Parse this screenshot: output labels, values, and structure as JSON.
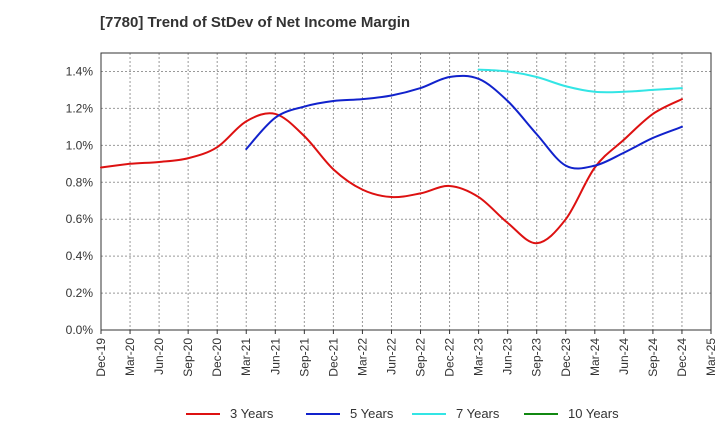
{
  "chart_data": {
    "type": "line",
    "title": "[7780]  Trend of StDev of Net Income Margin",
    "xlabel": "",
    "ylabel": "",
    "x": [
      "Dec-19",
      "Mar-20",
      "Jun-20",
      "Sep-20",
      "Dec-20",
      "Mar-21",
      "Jun-21",
      "Sep-21",
      "Dec-21",
      "Mar-22",
      "Jun-22",
      "Sep-22",
      "Dec-22",
      "Mar-23",
      "Jun-23",
      "Sep-23",
      "Dec-23",
      "Mar-24",
      "Jun-24",
      "Sep-24",
      "Dec-24",
      "Mar-25"
    ],
    "ylim": [
      0,
      1.5
    ],
    "yticks": [
      "0.0%",
      "0.2%",
      "0.4%",
      "0.6%",
      "0.8%",
      "1.0%",
      "1.2%",
      "1.4%"
    ],
    "ytick_values": [
      0,
      0.2,
      0.4,
      0.6,
      0.8,
      1.0,
      1.2,
      1.4
    ],
    "grid": true,
    "legend_position": "bottom",
    "series": [
      {
        "name": "3 Years",
        "color": "#dd1111",
        "values": [
          0.88,
          0.9,
          0.91,
          0.93,
          0.99,
          1.13,
          1.17,
          1.05,
          0.87,
          0.76,
          0.72,
          0.74,
          0.78,
          0.72,
          0.58,
          0.47,
          0.6,
          0.88,
          1.03,
          1.17,
          1.25,
          null
        ]
      },
      {
        "name": "5 Years",
        "color": "#1122cc",
        "values": [
          null,
          null,
          null,
          null,
          null,
          0.98,
          1.15,
          1.21,
          1.24,
          1.25,
          1.27,
          1.31,
          1.37,
          1.36,
          1.24,
          1.06,
          0.89,
          0.89,
          0.96,
          1.04,
          1.1,
          null
        ]
      },
      {
        "name": "7 Years",
        "color": "#33e5e5",
        "values": [
          null,
          null,
          null,
          null,
          null,
          null,
          null,
          null,
          null,
          null,
          null,
          null,
          null,
          1.41,
          1.4,
          1.37,
          1.32,
          1.29,
          1.29,
          1.3,
          1.31,
          null
        ]
      },
      {
        "name": "10 Years",
        "color": "#118811",
        "values": [
          null,
          null,
          null,
          null,
          null,
          null,
          null,
          null,
          null,
          null,
          null,
          null,
          null,
          null,
          null,
          null,
          null,
          null,
          null,
          null,
          null,
          null
        ]
      }
    ]
  }
}
